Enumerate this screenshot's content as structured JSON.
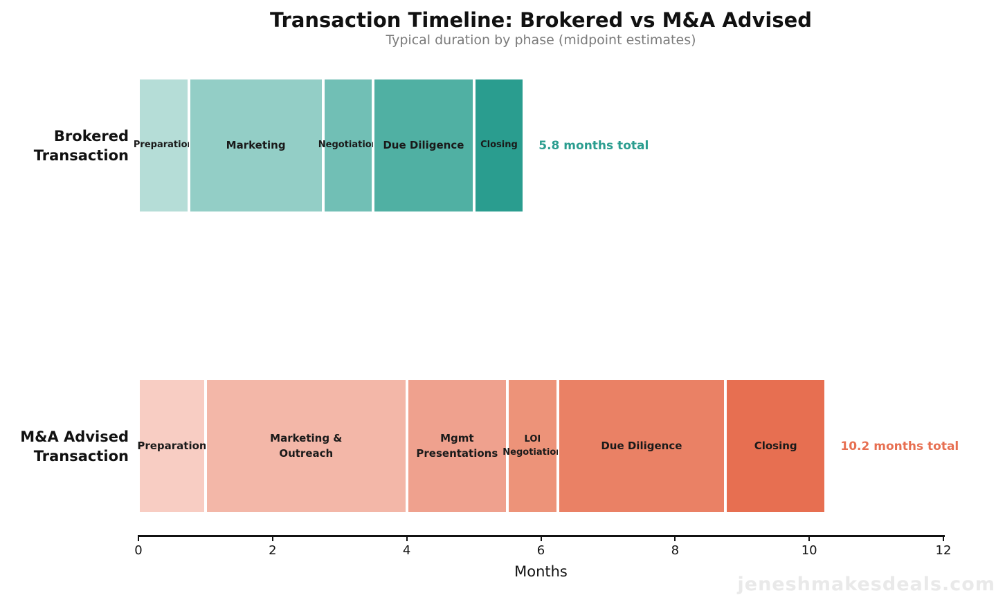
{
  "title": "Transaction Timeline: Brokered vs M&A Advised",
  "subtitle": "Typical duration by phase (midpoint estimates)",
  "watermark": "jeneshmakesdeals.com",
  "chart_data": {
    "type": "bar",
    "orientation": "horizontal-stacked",
    "title": "Transaction Timeline: Brokered vs M&A Advised",
    "subtitle": "Typical duration by phase (midpoint estimates)",
    "xlabel": "Months",
    "ylabel": "",
    "xlim": [
      0,
      12
    ],
    "xticks": [
      "0",
      "2",
      "4",
      "6",
      "8",
      "10",
      "12"
    ],
    "xtick_values": [
      0,
      2,
      4,
      6,
      8,
      10,
      12
    ],
    "grid": false,
    "legend": "none",
    "axis_color": "#111111",
    "rows": [
      {
        "name": "brokered-transaction",
        "label_lines": [
          "Brokered",
          "Transaction"
        ],
        "total_months": 5.75,
        "total_label": "5.8 months total",
        "total_color": "#2a9d8f",
        "segments": [
          {
            "name": "Preparation",
            "label_lines": [
              "Preparation"
            ],
            "months": 0.75,
            "color": "#b5ddd7"
          },
          {
            "name": "Marketing",
            "label_lines": [
              "Marketing"
            ],
            "months": 2.0,
            "color": "#93cec6"
          },
          {
            "name": "Negotiation",
            "label_lines": [
              "Negotiation"
            ],
            "months": 0.75,
            "color": "#71bfb5"
          },
          {
            "name": "Due Diligence",
            "label_lines": [
              "Due Diligence"
            ],
            "months": 1.5,
            "color": "#50b0a3"
          },
          {
            "name": "Closing",
            "label_lines": [
              "Closing"
            ],
            "months": 0.75,
            "color": "#2a9d8f"
          }
        ]
      },
      {
        "name": "ma-advised-transaction",
        "label_lines": [
          "M&A Advised",
          "Transaction"
        ],
        "total_months": 10.25,
        "total_label": "10.2 months total",
        "total_color": "#e76f51",
        "segments": [
          {
            "name": "Preparation",
            "label_lines": [
              "Preparation"
            ],
            "months": 1.0,
            "color": "#f8cdc3"
          },
          {
            "name": "Marketing & Outreach",
            "label_lines": [
              "Marketing &",
              "Outreach"
            ],
            "months": 3.0,
            "color": "#f3b7a8"
          },
          {
            "name": "Mgmt Presentations",
            "label_lines": [
              "Mgmt",
              "Presentations"
            ],
            "months": 1.5,
            "color": "#efa18e"
          },
          {
            "name": "LOI Negotiation",
            "label_lines": [
              "LOI",
              "Negotiation"
            ],
            "months": 0.75,
            "color": "#ed9379"
          },
          {
            "name": "Due Diligence",
            "label_lines": [
              "Due Diligence"
            ],
            "months": 2.5,
            "color": "#ea8165"
          },
          {
            "name": "Closing",
            "label_lines": [
              "Closing"
            ],
            "months": 1.5,
            "color": "#e76f51"
          }
        ]
      }
    ]
  }
}
